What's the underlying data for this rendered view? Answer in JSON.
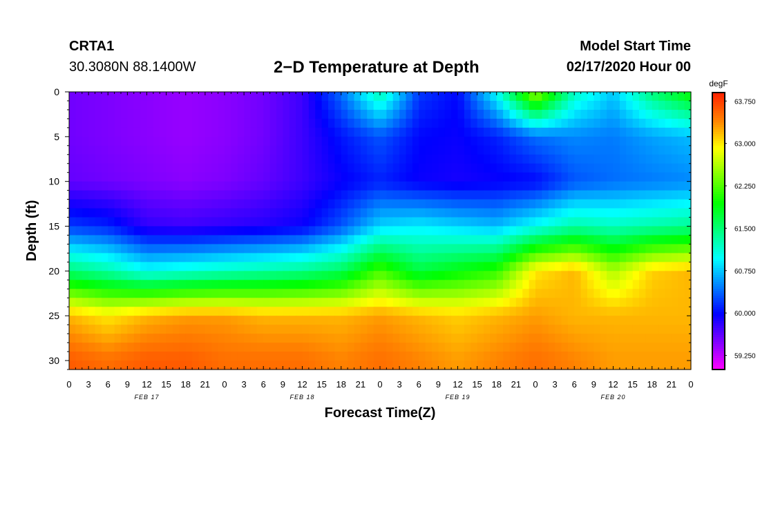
{
  "header": {
    "station": "CRTA1",
    "coords": "30.3080N 88.1400W",
    "title": "2−D Temperature at Depth",
    "model_start_label": "Model Start Time",
    "model_start_value": "02/17/2020 Hour 00"
  },
  "chart_data": {
    "type": "heatmap",
    "title": "2−D Temperature at Depth",
    "xlabel": "Forecast Time(Z)",
    "ylabel": "Depth (ft)",
    "x_tick_labels": [
      "0",
      "3",
      "6",
      "9",
      "12",
      "15",
      "18",
      "21",
      "0",
      "3",
      "6",
      "9",
      "12",
      "15",
      "18",
      "21",
      "0",
      "3",
      "6",
      "9",
      "12",
      "15",
      "18",
      "21",
      "0",
      "3",
      "6",
      "9",
      "12",
      "15",
      "18",
      "21",
      "0"
    ],
    "x_hours": [
      0,
      3,
      6,
      9,
      12,
      15,
      18,
      21,
      24,
      27,
      30,
      33,
      36,
      39,
      42,
      45,
      48,
      51,
      54,
      57,
      60,
      63,
      66,
      69,
      72,
      75,
      78,
      81,
      84,
      87,
      90,
      93,
      96
    ],
    "date_labels": [
      "FEB 17",
      "FEB 18",
      "FEB 19",
      "FEB 20"
    ],
    "date_label_hours": [
      12,
      36,
      60,
      84
    ],
    "y_ticks": [
      0,
      5,
      10,
      15,
      20,
      25,
      30
    ],
    "ylim": [
      31,
      0
    ],
    "xlim": [
      0,
      96
    ],
    "colorbar": {
      "unit": "degF",
      "labels": [
        "63.750",
        "63.000",
        "62.250",
        "61.500",
        "60.750",
        "60.000",
        "59.250"
      ],
      "range": [
        59.0,
        63.9
      ],
      "colors": [
        "#ff00ff",
        "#8000ff",
        "#0000ff",
        "#0080ff",
        "#00ffff",
        "#00ff80",
        "#00ff00",
        "#80ff00",
        "#ffff00",
        "#ff8000",
        "#ff2000"
      ]
    },
    "z_hours": [
      0,
      6,
      12,
      18,
      24,
      30,
      36,
      42,
      48,
      54,
      60,
      66,
      72,
      78,
      84,
      90,
      96
    ],
    "z_depths": [
      0,
      5,
      10,
      15,
      20,
      25,
      30
    ],
    "z_values": [
      [
        59.55,
        59.5,
        59.45,
        59.4,
        59.45,
        59.55,
        59.75,
        60.4,
        61.3,
        60.2,
        60.0,
        61.0,
        62.6,
        61.2,
        60.75,
        61.5,
        62.0
      ],
      [
        59.55,
        59.5,
        59.45,
        59.4,
        59.45,
        59.55,
        59.75,
        60.05,
        60.3,
        60.0,
        59.95,
        60.1,
        60.4,
        60.5,
        60.45,
        60.6,
        60.7
      ],
      [
        59.6,
        59.55,
        59.5,
        59.45,
        59.5,
        59.6,
        59.75,
        59.95,
        60.1,
        59.95,
        59.9,
        59.95,
        60.0,
        60.3,
        60.4,
        60.45,
        60.5
      ],
      [
        60.2,
        60.1,
        59.8,
        59.75,
        59.8,
        59.85,
        59.95,
        60.3,
        60.8,
        60.9,
        60.8,
        60.7,
        61.0,
        61.3,
        61.2,
        61.3,
        61.4
      ],
      [
        61.5,
        61.3,
        61.0,
        61.1,
        61.2,
        61.3,
        61.4,
        61.6,
        62.2,
        61.7,
        61.9,
        62.1,
        63.0,
        63.2,
        62.6,
        63.1,
        63.2
      ],
      [
        63.2,
        63.0,
        63.2,
        63.3,
        63.3,
        63.2,
        63.2,
        63.2,
        63.3,
        63.2,
        63.1,
        63.2,
        63.3,
        63.2,
        63.2,
        63.2,
        63.2
      ],
      [
        63.6,
        63.5,
        63.6,
        63.6,
        63.5,
        63.5,
        63.5,
        63.4,
        63.5,
        63.4,
        63.3,
        63.4,
        63.5,
        63.4,
        63.3,
        63.3,
        63.3
      ]
    ]
  }
}
